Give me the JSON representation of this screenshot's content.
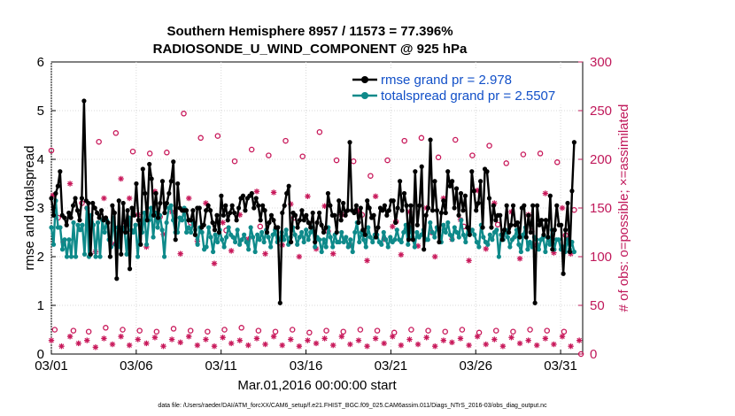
{
  "chart_data": {
    "type": "line",
    "title_line1": "Southern Hemisphere 8957 / 11573 = 77.396%",
    "title_line2": "RADIOSONDE_U_WIND_COMPONENT @ 925 hPa",
    "xlabel": "Mar.01,2016 00:00:00 start",
    "ylabel_left": "rmse and totalspread",
    "ylabel_right": "# of obs: o=possible; ×=assimilated",
    "footer": "data file: /Users/raeder/DAI/ATM_forcXX/CAM6_setup/f.e21.FHIST_BGC.f09_025.CAM6assim.011/Diags_NTrS_2016-03/obs_diag_output.nc",
    "xlim": [
      1,
      32.3
    ],
    "ylim_left": [
      0,
      6
    ],
    "ylim_right": [
      0,
      300
    ],
    "x_tick_values": [
      1,
      6,
      11,
      16,
      21,
      26,
      31
    ],
    "x_tick_labels": [
      "03/01",
      "03/06",
      "03/11",
      "03/16",
      "03/21",
      "03/26",
      "03/31"
    ],
    "y_left_ticks": [
      "0",
      "1",
      "2",
      "3",
      "4",
      "5",
      "6"
    ],
    "y_right_ticks": [
      "0",
      "50",
      "100",
      "150",
      "200",
      "250",
      "300"
    ],
    "colors": {
      "rmse": "#000000",
      "spread": "#0e8a8a",
      "obs": "#c8185a",
      "legend_text": "#1250c8"
    },
    "series": [
      {
        "name": "rmse grand pr = 2.978",
        "key": "rmse",
        "values": [
          3.2,
          2.85,
          3.3,
          3.45,
          3.75,
          2.85,
          2.8,
          2.65,
          2.9,
          2.8,
          3.05,
          3.2,
          2.95,
          2.75,
          3.2,
          5.2,
          3.15,
          3.1,
          2.05,
          3.1,
          3.0,
          2.9,
          2.8,
          2.95,
          2.75,
          2.8,
          2.7,
          2.0,
          3.05,
          2.9,
          1.55,
          3.15,
          2.05,
          3.1,
          2.5,
          2.95,
          1.75,
          3.0,
          2.85,
          3.5,
          2.75,
          2.25,
          3.8,
          3.3,
          2.75,
          3.9,
          3.6,
          2.85,
          3.3,
          2.8,
          3.1,
          3.55,
          2.9,
          3.1,
          3.3,
          3.55,
          3.95,
          2.35,
          3.5,
          3.0,
          2.95,
          2.95,
          2.95,
          2.75,
          2.75,
          2.95,
          2.45,
          3.0,
          3.0,
          2.6,
          2.65,
          2.95,
          3.05,
          2.95,
          2.7,
          2.55,
          2.85,
          2.5,
          3.25,
          2.85,
          3.05,
          2.75,
          2.9,
          3.05,
          2.9,
          2.75,
          3.0,
          3.2,
          3.25,
          2.95,
          3.2,
          3.25,
          3.3,
          3.0,
          3.2,
          3.05,
          2.75,
          3.05,
          2.95,
          2.5,
          2.7,
          2.85,
          2.75,
          2.6,
          2.6,
          1.05,
          2.9,
          3.05,
          3.3,
          3.45,
          2.3,
          2.9,
          2.85,
          2.6,
          2.75,
          2.95,
          2.75,
          2.85,
          2.7,
          2.6,
          2.9,
          2.3,
          2.7,
          2.9,
          2.65,
          2.5,
          2.6,
          3.3,
          3.05,
          2.85,
          2.85,
          2.5,
          3.15,
          2.75,
          3.1,
          2.85,
          2.95,
          4.35,
          2.95,
          2.9,
          3.05,
          2.7,
          3.0,
          2.55,
          2.45,
          3.15,
          3.0,
          2.8,
          2.85,
          2.4,
          2.6,
          3.0,
          2.95,
          3.05,
          2.85,
          2.95,
          3.15,
          3.15,
          2.7,
          3.0,
          3.55,
          2.95,
          3.3,
          3.05,
          2.35,
          3.05,
          2.35,
          3.75,
          2.65,
          3.05,
          3.85,
          2.15,
          2.85,
          3.0,
          4.4,
          2.95,
          3.55,
          2.95,
          2.3,
          2.9,
          3.15,
          2.9,
          3.75,
          3.45,
          3.55,
          3.0,
          3.4,
          2.85,
          3.3,
          2.95,
          3.25,
          2.6,
          2.45,
          3.75,
          3.35,
          2.95,
          3.1,
          3.55,
          2.6,
          3.8,
          3.75,
          3.2,
          2.6,
          3.05,
          2.75,
          2.85,
          2.85,
          2.35,
          2.55,
          3.05,
          2.5,
          2.65,
          3.05,
          2.65,
          2.7,
          2.4,
          3.0,
          3.05,
          2.4,
          2.85,
          2.5,
          3.05,
          1.05,
          3.05,
          2.65,
          2.75,
          2.45,
          2.75,
          2.4,
          3.25,
          2.15,
          2.55,
          3.05,
          2.65,
          2.65,
          1.65,
          2.55,
          3.1,
          2.1,
          3.35,
          4.35
        ]
      },
      {
        "name": "totalspread grand pr = 2.5507",
        "key": "spread",
        "values": [
          2.6,
          2.25,
          3.15,
          2.6,
          2.6,
          2.15,
          2.35,
          2.0,
          2.35,
          2.0,
          2.7,
          2.0,
          2.65,
          2.55,
          2.65,
          2.05,
          3.0,
          2.0,
          2.85,
          2.65,
          2.0,
          2.7,
          2.0,
          2.75,
          2.5,
          2.75,
          2.35,
          2.2,
          2.8,
          2.25,
          2.6,
          2.2,
          2.6,
          2.55,
          2.05,
          2.8,
          2.55,
          2.5,
          2.65,
          2.0,
          2.7,
          2.5,
          2.9,
          2.25,
          2.75,
          3.0,
          2.4,
          2.9,
          2.6,
          2.85,
          2.55,
          2.0,
          2.7,
          3.0,
          3.05,
          2.75,
          2.5,
          2.5,
          2.8,
          2.75,
          3.0,
          2.5,
          2.6,
          2.5,
          2.7,
          2.55,
          2.25,
          2.6,
          2.5,
          2.15,
          2.2,
          2.6,
          2.4,
          2.1,
          2.45,
          2.3,
          2.55,
          2.35,
          2.2,
          2.4,
          2.6,
          2.45,
          2.4,
          2.3,
          2.55,
          2.25,
          2.35,
          2.45,
          2.3,
          2.15,
          2.6,
          2.4,
          2.1,
          2.45,
          2.35,
          2.5,
          2.3,
          2.55,
          2.4,
          2.2,
          2.45,
          2.55,
          2.3,
          2.35,
          2.5,
          2.35,
          2.55,
          2.25,
          2.4,
          2.6,
          2.45,
          2.25,
          2.4,
          2.5,
          2.3,
          2.55,
          2.35,
          2.5,
          2.6,
          2.2,
          2.4,
          2.35,
          2.1,
          2.35,
          2.2,
          2.6,
          2.4,
          2.2,
          2.45,
          2.3,
          2.3,
          2.5,
          2.3,
          2.4,
          2.2,
          2.35,
          2.1,
          2.5,
          2.7,
          2.3,
          2.5,
          2.35,
          2.2,
          2.6,
          2.4,
          2.3,
          2.45,
          2.45,
          2.3,
          2.25,
          2.5,
          2.35,
          2.2,
          2.4,
          2.3,
          2.35,
          2.55,
          2.35,
          2.3,
          2.5,
          2.65,
          2.25,
          2.6,
          2.4,
          2.2,
          2.5,
          2.4,
          2.45,
          2.55,
          2.35,
          2.35,
          2.7,
          2.5,
          2.4,
          2.6,
          2.55,
          2.3,
          2.65,
          2.5,
          2.7,
          2.45,
          2.35,
          2.6,
          2.5,
          2.4,
          2.75,
          2.45,
          2.3,
          2.6,
          2.5,
          2.55,
          2.45,
          2.3,
          2.2,
          2.65,
          2.4,
          2.3,
          2.25,
          2.45,
          2.35,
          2.5,
          2.55,
          2.0,
          2.45,
          2.35,
          2.55,
          2.4,
          2.2,
          2.35,
          2.4,
          2.55,
          2.25,
          2.1,
          2.45,
          2.6,
          2.15,
          2.3,
          2.2,
          2.4,
          2.35,
          2.15,
          2.35,
          2.4,
          2.1,
          2.4,
          2.25,
          2.55,
          2.15,
          2.35,
          2.35,
          2.15,
          2.2,
          2.1,
          2.35,
          2.15,
          2.3,
          2.1
        ]
      }
    ],
    "obs_possible": [
      {
        "x": 1.0,
        "y": 209
      },
      {
        "x": 2.8,
        "y": 155
      },
      {
        "x": 3.8,
        "y": 218
      },
      {
        "x": 4.8,
        "y": 227
      },
      {
        "x": 5.8,
        "y": 208
      },
      {
        "x": 6.8,
        "y": 206
      },
      {
        "x": 7.8,
        "y": 207
      },
      {
        "x": 8.8,
        "y": 247
      },
      {
        "x": 9.8,
        "y": 222
      },
      {
        "x": 10.8,
        "y": 224
      },
      {
        "x": 11.8,
        "y": 198
      },
      {
        "x": 12.8,
        "y": 210
      },
      {
        "x": 13.8,
        "y": 204
      },
      {
        "x": 14.8,
        "y": 219
      },
      {
        "x": 15.8,
        "y": 203
      },
      {
        "x": 16.8,
        "y": 228
      },
      {
        "x": 17.8,
        "y": 199
      },
      {
        "x": 18.8,
        "y": 198
      },
      {
        "x": 19.8,
        "y": 183
      },
      {
        "x": 20.8,
        "y": 199
      },
      {
        "x": 21.8,
        "y": 219
      },
      {
        "x": 22.8,
        "y": 222
      },
      {
        "x": 23.8,
        "y": 202
      },
      {
        "x": 24.8,
        "y": 220
      },
      {
        "x": 25.8,
        "y": 204
      },
      {
        "x": 26.8,
        "y": 214
      },
      {
        "x": 27.8,
        "y": 196
      },
      {
        "x": 28.8,
        "y": 205
      },
      {
        "x": 29.8,
        "y": 206
      },
      {
        "x": 30.8,
        "y": 197
      },
      {
        "x": 31.8,
        "y": 148
      },
      {
        "x": 1.4,
        "y": 140
      },
      {
        "x": 3.3,
        "y": 138
      },
      {
        "x": 5.3,
        "y": 132
      },
      {
        "x": 7.4,
        "y": 141
      },
      {
        "x": 9.2,
        "y": 135
      },
      {
        "x": 11.3,
        "y": 127
      },
      {
        "x": 13.3,
        "y": 131
      },
      {
        "x": 15.3,
        "y": 140
      },
      {
        "x": 17.3,
        "y": 126
      },
      {
        "x": 19.3,
        "y": 143
      },
      {
        "x": 21.3,
        "y": 136
      },
      {
        "x": 23.4,
        "y": 125
      },
      {
        "x": 25.3,
        "y": 131
      },
      {
        "x": 27.3,
        "y": 133
      },
      {
        "x": 29.3,
        "y": 126
      },
      {
        "x": 31.3,
        "y": 122
      },
      {
        "x": 1.2,
        "y": 25
      },
      {
        "x": 2.3,
        "y": 24
      },
      {
        "x": 3.2,
        "y": 23
      },
      {
        "x": 4.2,
        "y": 27
      },
      {
        "x": 5.2,
        "y": 25
      },
      {
        "x": 6.2,
        "y": 24
      },
      {
        "x": 7.2,
        "y": 23
      },
      {
        "x": 8.2,
        "y": 26
      },
      {
        "x": 9.2,
        "y": 24
      },
      {
        "x": 10.2,
        "y": 23
      },
      {
        "x": 11.2,
        "y": 25
      },
      {
        "x": 12.2,
        "y": 27
      },
      {
        "x": 13.2,
        "y": 24
      },
      {
        "x": 14.2,
        "y": 23
      },
      {
        "x": 15.2,
        "y": 25
      },
      {
        "x": 16.2,
        "y": 22
      },
      {
        "x": 17.2,
        "y": 24
      },
      {
        "x": 18.2,
        "y": 23
      },
      {
        "x": 19.2,
        "y": 25
      },
      {
        "x": 20.2,
        "y": 24
      },
      {
        "x": 21.2,
        "y": 22
      },
      {
        "x": 22.2,
        "y": 25
      },
      {
        "x": 23.2,
        "y": 24
      },
      {
        "x": 24.2,
        "y": 23
      },
      {
        "x": 25.2,
        "y": 25
      },
      {
        "x": 26.2,
        "y": 22
      },
      {
        "x": 27.2,
        "y": 24
      },
      {
        "x": 28.2,
        "y": 23
      },
      {
        "x": 29.2,
        "y": 25
      },
      {
        "x": 30.2,
        "y": 24
      },
      {
        "x": 31.2,
        "y": 23
      },
      {
        "x": 32.2,
        "y": 0
      }
    ],
    "obs_assimilated": [
      {
        "x": 1.1,
        "y": 163
      },
      {
        "x": 1.7,
        "y": 115
      },
      {
        "x": 2.1,
        "y": 175
      },
      {
        "x": 3.1,
        "y": 150
      },
      {
        "x": 3.6,
        "y": 105
      },
      {
        "x": 4.1,
        "y": 160
      },
      {
        "x": 4.6,
        "y": 113
      },
      {
        "x": 5.1,
        "y": 180
      },
      {
        "x": 5.6,
        "y": 160
      },
      {
        "x": 6.1,
        "y": 143
      },
      {
        "x": 6.6,
        "y": 110
      },
      {
        "x": 7.1,
        "y": 167
      },
      {
        "x": 7.6,
        "y": 123
      },
      {
        "x": 8.1,
        "y": 146
      },
      {
        "x": 8.6,
        "y": 103
      },
      {
        "x": 9.1,
        "y": 160
      },
      {
        "x": 9.6,
        "y": 116
      },
      {
        "x": 10.1,
        "y": 155
      },
      {
        "x": 10.6,
        "y": 93
      },
      {
        "x": 11.1,
        "y": 135
      },
      {
        "x": 11.6,
        "y": 106
      },
      {
        "x": 12.1,
        "y": 143
      },
      {
        "x": 12.6,
        "y": 118
      },
      {
        "x": 13.1,
        "y": 167
      },
      {
        "x": 13.6,
        "y": 103
      },
      {
        "x": 14.1,
        "y": 166
      },
      {
        "x": 14.6,
        "y": 112
      },
      {
        "x": 15.1,
        "y": 154
      },
      {
        "x": 15.6,
        "y": 100
      },
      {
        "x": 16.1,
        "y": 162
      },
      {
        "x": 16.6,
        "y": 108
      },
      {
        "x": 17.1,
        "y": 152
      },
      {
        "x": 17.6,
        "y": 103
      },
      {
        "x": 18.1,
        "y": 143
      },
      {
        "x": 18.6,
        "y": 112
      },
      {
        "x": 19.1,
        "y": 147
      },
      {
        "x": 19.6,
        "y": 96
      },
      {
        "x": 20.1,
        "y": 162
      },
      {
        "x": 20.6,
        "y": 118
      },
      {
        "x": 21.1,
        "y": 131
      },
      {
        "x": 21.6,
        "y": 102
      },
      {
        "x": 22.1,
        "y": 146
      },
      {
        "x": 22.6,
        "y": 111
      },
      {
        "x": 23.1,
        "y": 150
      },
      {
        "x": 23.6,
        "y": 100
      },
      {
        "x": 24.1,
        "y": 160
      },
      {
        "x": 24.6,
        "y": 118
      },
      {
        "x": 25.1,
        "y": 138
      },
      {
        "x": 25.6,
        "y": 96
      },
      {
        "x": 26.1,
        "y": 168
      },
      {
        "x": 26.6,
        "y": 108
      },
      {
        "x": 27.1,
        "y": 155
      },
      {
        "x": 27.6,
        "y": 121
      },
      {
        "x": 28.1,
        "y": 146
      },
      {
        "x": 28.6,
        "y": 98
      },
      {
        "x": 29.1,
        "y": 143
      },
      {
        "x": 29.6,
        "y": 112
      },
      {
        "x": 30.1,
        "y": 165
      },
      {
        "x": 30.6,
        "y": 104
      },
      {
        "x": 31.1,
        "y": 150
      },
      {
        "x": 31.6,
        "y": 103
      },
      {
        "x": 1.0,
        "y": 14
      },
      {
        "x": 1.6,
        "y": 8
      },
      {
        "x": 2.1,
        "y": 18
      },
      {
        "x": 2.6,
        "y": 11
      },
      {
        "x": 3.1,
        "y": 14
      },
      {
        "x": 3.6,
        "y": 7
      },
      {
        "x": 4.1,
        "y": 16
      },
      {
        "x": 4.6,
        "y": 10
      },
      {
        "x": 5.1,
        "y": 18
      },
      {
        "x": 5.6,
        "y": 9
      },
      {
        "x": 6.1,
        "y": 15
      },
      {
        "x": 6.6,
        "y": 11
      },
      {
        "x": 7.1,
        "y": 17
      },
      {
        "x": 7.6,
        "y": 8
      },
      {
        "x": 8.1,
        "y": 15
      },
      {
        "x": 8.6,
        "y": 12
      },
      {
        "x": 9.1,
        "y": 18
      },
      {
        "x": 9.6,
        "y": 9
      },
      {
        "x": 10.1,
        "y": 15
      },
      {
        "x": 10.6,
        "y": 8
      },
      {
        "x": 11.1,
        "y": 17
      },
      {
        "x": 11.6,
        "y": 11
      },
      {
        "x": 12.1,
        "y": 14
      },
      {
        "x": 12.6,
        "y": 9
      },
      {
        "x": 13.1,
        "y": 16
      },
      {
        "x": 13.6,
        "y": 10
      },
      {
        "x": 14.1,
        "y": 18
      },
      {
        "x": 14.6,
        "y": 9
      },
      {
        "x": 15.1,
        "y": 15
      },
      {
        "x": 15.6,
        "y": 8
      },
      {
        "x": 16.1,
        "y": 14
      },
      {
        "x": 16.6,
        "y": 11
      },
      {
        "x": 17.1,
        "y": 16
      },
      {
        "x": 17.6,
        "y": 9
      },
      {
        "x": 18.1,
        "y": 18
      },
      {
        "x": 18.6,
        "y": 10
      },
      {
        "x": 19.1,
        "y": 14
      },
      {
        "x": 19.6,
        "y": 8
      },
      {
        "x": 20.1,
        "y": 16
      },
      {
        "x": 20.6,
        "y": 11
      },
      {
        "x": 21.1,
        "y": 18
      },
      {
        "x": 21.6,
        "y": 9
      },
      {
        "x": 22.1,
        "y": 15
      },
      {
        "x": 22.6,
        "y": 10
      },
      {
        "x": 23.1,
        "y": 17
      },
      {
        "x": 23.6,
        "y": 8
      },
      {
        "x": 24.1,
        "y": 14
      },
      {
        "x": 24.6,
        "y": 12
      },
      {
        "x": 25.1,
        "y": 16
      },
      {
        "x": 25.6,
        "y": 9
      },
      {
        "x": 26.1,
        "y": 18
      },
      {
        "x": 26.6,
        "y": 10
      },
      {
        "x": 27.1,
        "y": 15
      },
      {
        "x": 27.6,
        "y": 8
      },
      {
        "x": 28.1,
        "y": 17
      },
      {
        "x": 28.6,
        "y": 11
      },
      {
        "x": 29.1,
        "y": 14
      },
      {
        "x": 29.6,
        "y": 9
      },
      {
        "x": 30.1,
        "y": 16
      },
      {
        "x": 30.6,
        "y": 10
      },
      {
        "x": 31.1,
        "y": 18
      },
      {
        "x": 31.6,
        "y": 8
      },
      {
        "x": 32.1,
        "y": 14
      }
    ]
  }
}
